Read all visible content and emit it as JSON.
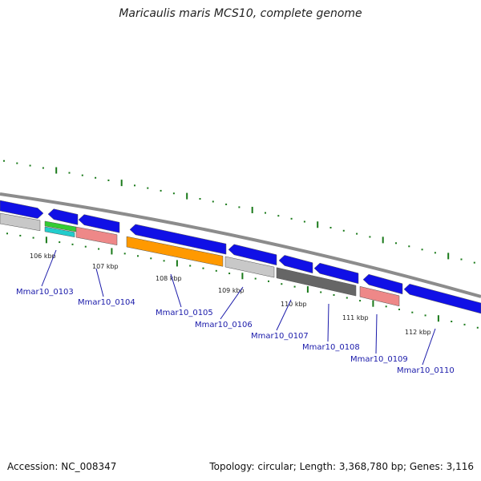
{
  "title": "Maricaulis maris MCS10, complete genome",
  "footer": {
    "accession": "Accession: NC_008347",
    "summary": "Topology: circular; Length: 3,368,780 bp; Genes: 3,116"
  },
  "colors": {
    "backbone": "#8c8c8c",
    "tick": "#1a7a1a",
    "label_line": "#1a1aaa",
    "blue": "#1010e6",
    "light_gray": "#c8c8c8",
    "dark_gray": "#666666",
    "salmon": "#ee8888",
    "orange": "#ff9900",
    "green": "#33cc33",
    "teal": "#22cccc"
  },
  "ticks": [
    {
      "label": "106 kbp"
    },
    {
      "label": "107 kbp"
    },
    {
      "label": "108 kbp"
    },
    {
      "label": "109 kbp"
    },
    {
      "label": "110 kbp"
    },
    {
      "label": "111 kbp"
    },
    {
      "label": "112 kbp"
    }
  ],
  "genes": [
    {
      "label": "Mmar10_0103"
    },
    {
      "label": "Mmar10_0104"
    },
    {
      "label": "Mmar10_0105"
    },
    {
      "label": "Mmar10_0106"
    },
    {
      "label": "Mmar10_0107"
    },
    {
      "label": "Mmar10_0108"
    },
    {
      "label": "Mmar10_0109"
    },
    {
      "label": "Mmar10_0110"
    }
  ]
}
